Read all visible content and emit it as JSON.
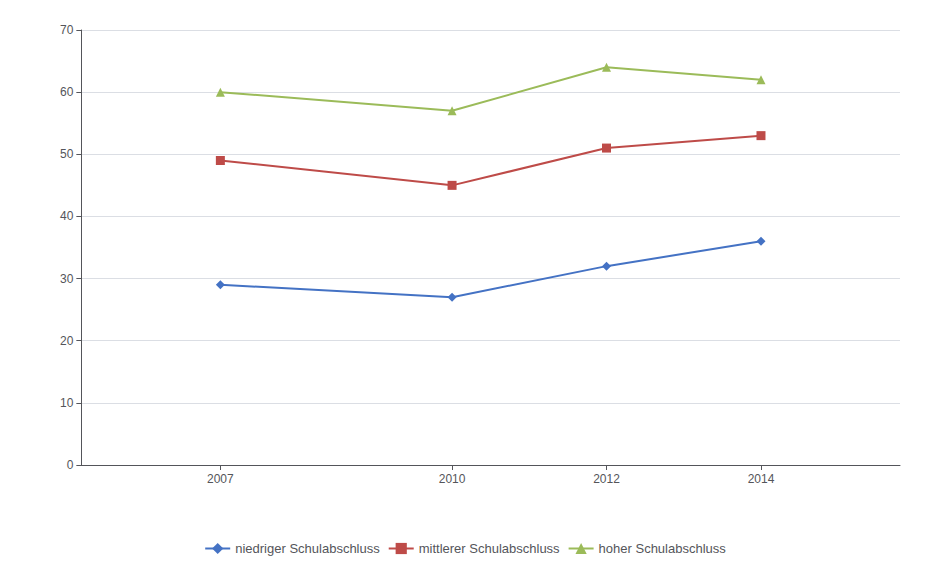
{
  "chart_data": {
    "type": "line",
    "x": [
      2007,
      2010,
      2012,
      2014
    ],
    "xlim": [
      2005.2,
      2015.8
    ],
    "xticks": [
      2007,
      2010,
      2012,
      2014
    ],
    "ylim": [
      0,
      70
    ],
    "yticks": [
      0,
      10,
      20,
      30,
      40,
      50,
      60,
      70
    ],
    "grid": true,
    "legend": "bottom",
    "series": [
      {
        "name": "niedriger Schulabschluss",
        "color": "#4472C4",
        "marker": "diamond",
        "values": [
          29.0,
          27.0,
          32.0,
          36.0
        ]
      },
      {
        "name": "mittlerer Schulabschluss",
        "color": "#BE4B48",
        "marker": "square",
        "values": [
          49.0,
          45.0,
          51.0,
          53.0
        ]
      },
      {
        "name": "hoher Schulabschluss",
        "color": "#9BBB59",
        "marker": "triangle",
        "values": [
          60.0,
          57.0,
          64.0,
          62.0
        ]
      }
    ]
  }
}
